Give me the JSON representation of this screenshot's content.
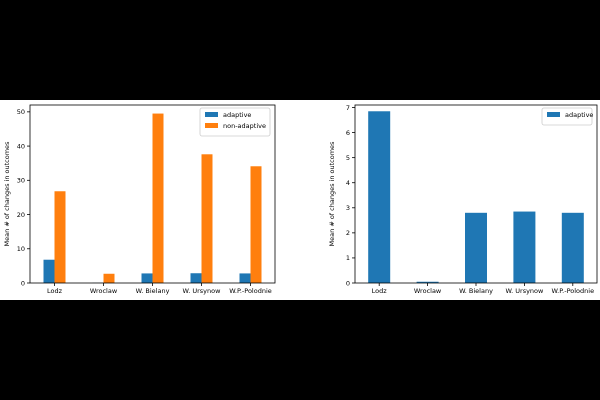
{
  "chart_data": [
    {
      "type": "bar",
      "categories": [
        "Lodz",
        "Wroclaw",
        "W. Bielany",
        "W. Ursynow",
        "W.P.-Polodnie"
      ],
      "series": [
        {
          "name": "adaptive",
          "values": [
            6.8,
            0.05,
            2.8,
            2.85,
            2.8
          ],
          "color": "#1f77b4"
        },
        {
          "name": "non-adaptive",
          "values": [
            26.8,
            2.7,
            49.5,
            37.6,
            34.1
          ],
          "color": "#ff7f0e"
        }
      ],
      "ylabel": "Mean # of changes in outcomes",
      "xlabel": "",
      "ylim": [
        0,
        52
      ],
      "yticks": [
        0,
        10,
        20,
        30,
        40,
        50
      ],
      "legend": "top-right",
      "grid": false
    },
    {
      "type": "bar",
      "categories": [
        "Lodz",
        "Wroclaw",
        "W. Bielany",
        "W. Ursynow",
        "W.P.-Polodnie"
      ],
      "series": [
        {
          "name": "adaptive",
          "values": [
            6.85,
            0.05,
            2.8,
            2.85,
            2.8
          ],
          "color": "#1f77b4"
        }
      ],
      "ylabel": "Mean # of changes in outcomes",
      "xlabel": "",
      "ylim": [
        0,
        7.1
      ],
      "yticks": [
        0,
        1,
        2,
        3,
        4,
        5,
        6,
        7
      ],
      "legend": "top-right",
      "grid": false
    }
  ]
}
